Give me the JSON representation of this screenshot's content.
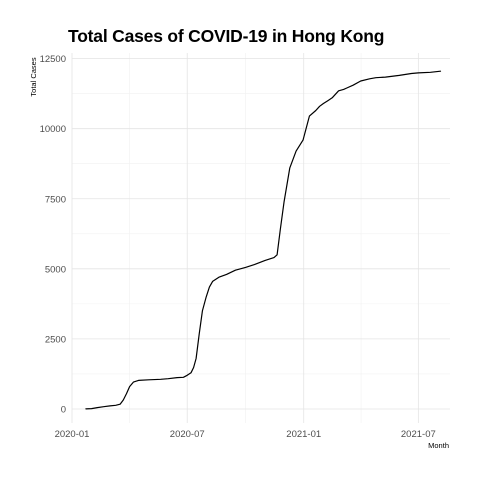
{
  "chart_data": {
    "type": "line",
    "title": "Total Cases of COVID-19 in Hong Kong",
    "xlabel": "Month",
    "ylabel": "Total Cases",
    "x_ticks": [
      "2020-01",
      "2020-07",
      "2021-01",
      "2021-07"
    ],
    "y_ticks": [
      "0",
      "2500",
      "5000",
      "7500",
      "10000",
      "12500"
    ],
    "xlim": [
      "2020-01-01",
      "2021-08-20"
    ],
    "ylim": [
      -500,
      12700
    ],
    "grid": true,
    "line_color": "#000000",
    "series": [
      {
        "x": [
          "2020-01-23",
          "2020-02-01",
          "2020-02-10",
          "2020-02-20",
          "2020-03-01",
          "2020-03-10",
          "2020-03-17",
          "2020-03-22",
          "2020-03-27",
          "2020-04-01",
          "2020-04-07",
          "2020-04-15",
          "2020-05-01",
          "2020-05-20",
          "2020-06-01",
          "2020-06-15",
          "2020-06-25",
          "2020-07-01",
          "2020-07-07",
          "2020-07-11",
          "2020-07-15",
          "2020-07-20",
          "2020-07-25",
          "2020-07-31",
          "2020-08-05",
          "2020-08-10",
          "2020-08-20",
          "2020-09-01",
          "2020-09-15",
          "2020-10-01",
          "2020-10-15",
          "2020-11-01",
          "2020-11-15",
          "2020-11-20",
          "2020-11-25",
          "2020-12-01",
          "2020-12-10",
          "2020-12-20",
          "2020-12-31",
          "2021-01-10",
          "2021-01-20",
          "2021-01-26",
          "2021-02-01",
          "2021-02-08",
          "2021-02-15",
          "2021-02-25",
          "2021-03-05",
          "2021-03-10",
          "2021-03-20",
          "2021-04-01",
          "2021-04-15",
          "2021-04-25",
          "2021-05-10",
          "2021-06-01",
          "2021-06-20",
          "2021-07-01",
          "2021-07-20",
          "2021-08-05"
        ],
        "y": [
          2,
          13,
          50,
          80,
          110,
          130,
          170,
          320,
          550,
          800,
          960,
          1020,
          1040,
          1060,
          1080,
          1120,
          1130,
          1200,
          1290,
          1480,
          1800,
          2700,
          3500,
          4000,
          4350,
          4550,
          4700,
          4800,
          4950,
          5050,
          5150,
          5300,
          5400,
          5500,
          6400,
          7400,
          8600,
          9200,
          9600,
          10450,
          10650,
          10800,
          10900,
          11000,
          11100,
          11350,
          11400,
          11450,
          11550,
          11700,
          11780,
          11820,
          11840,
          11900,
          11970,
          11990,
          12010,
          12050
        ]
      }
    ]
  }
}
